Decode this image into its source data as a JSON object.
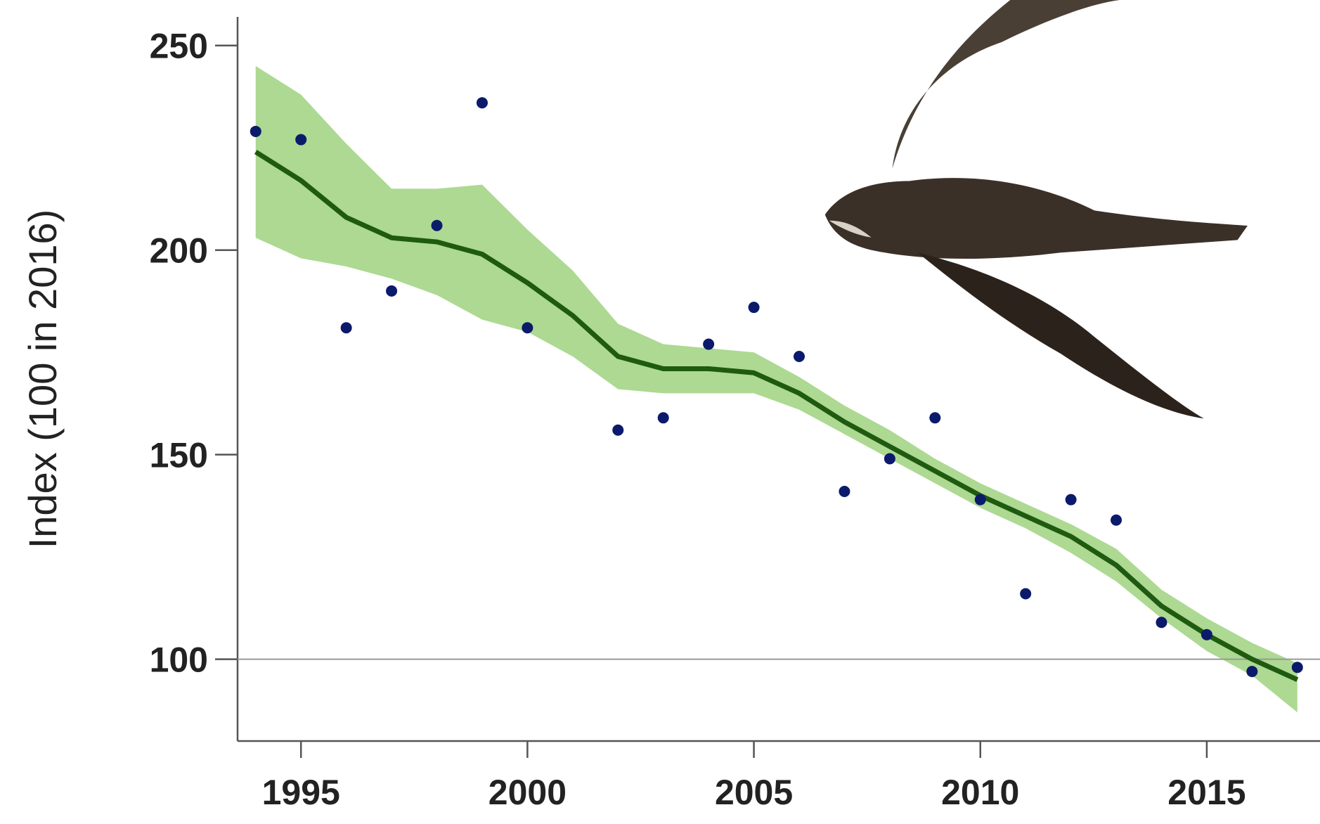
{
  "chart_data": {
    "type": "scatter",
    "y_label": "Index (100 in 2016)",
    "xlim": [
      1993.6,
      2017.5
    ],
    "ylim": [
      80,
      257
    ],
    "xticks": [
      1995,
      2000,
      2005,
      2010,
      2015
    ],
    "yticks": [
      100,
      150,
      200,
      250
    ],
    "hline": 100,
    "points": {
      "color": "#0b1a6b",
      "x": [
        1994,
        1995,
        1996,
        1997,
        1998,
        1999,
        2000,
        2002,
        2003,
        2004,
        2005,
        2006,
        2007,
        2008,
        2009,
        2010,
        2011,
        2012,
        2013,
        2014,
        2015,
        2016,
        2017
      ],
      "values": [
        229,
        227,
        181,
        190,
        206,
        236,
        181,
        156,
        159,
        177,
        186,
        174,
        141,
        149,
        159,
        139,
        116,
        139,
        134,
        109,
        106,
        97,
        98
      ]
    },
    "trend": {
      "color": "#1e5a10",
      "band_color": "#9fd27f",
      "x": [
        1994,
        1995,
        1996,
        1997,
        1998,
        1999,
        2000,
        2001,
        2002,
        2003,
        2004,
        2005,
        2006,
        2007,
        2008,
        2009,
        2010,
        2011,
        2012,
        2013,
        2014,
        2015,
        2016,
        2017
      ],
      "values": [
        224,
        217,
        208,
        203,
        202,
        199,
        192,
        184,
        174,
        171,
        171,
        170,
        165,
        158,
        152,
        146,
        140,
        135,
        130,
        123,
        113,
        106,
        100,
        95
      ],
      "upper": [
        245,
        238,
        226,
        215,
        215,
        216,
        205,
        195,
        182,
        177,
        176,
        175,
        169,
        162,
        156,
        149,
        143,
        138,
        133,
        127,
        117,
        110,
        104,
        99
      ],
      "lower": [
        203,
        198,
        196,
        193,
        189,
        183,
        180,
        174,
        166,
        165,
        165,
        165,
        161,
        155,
        149,
        143,
        137,
        132,
        126,
        119,
        110,
        102,
        96,
        87
      ]
    }
  }
}
